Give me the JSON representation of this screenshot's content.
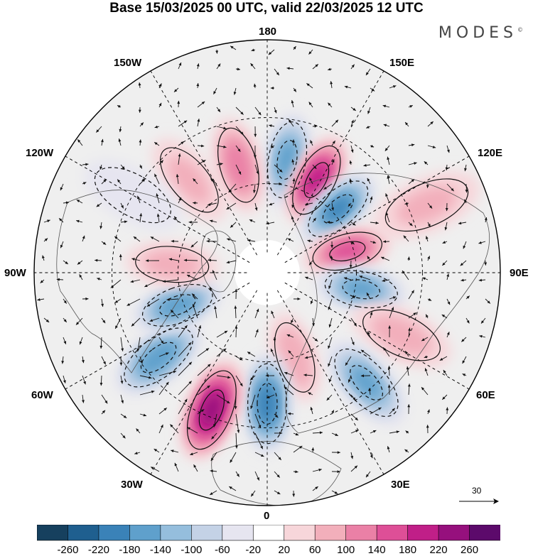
{
  "title": "Base 15/03/2025 00 UTC, valid 22/03/2025 12 UTC",
  "brand": "MODES",
  "brand_mark": "©",
  "longitude_labels": {
    "top": "180",
    "bottom": "0",
    "left": "90W",
    "right": "90E",
    "upper_left_1": "150W",
    "upper_left_2": "120W",
    "lower_left_1": "60W",
    "lower_left_2": "30W",
    "upper_right_1": "150E",
    "upper_right_2": "120E",
    "lower_right_1": "60E",
    "lower_right_2": "30E"
  },
  "reference_vector": {
    "label": "30"
  },
  "colorbar": {
    "ticks": [
      "-260",
      "-220",
      "-180",
      "-140",
      "-100",
      "-60",
      "-20",
      "20",
      "60",
      "100",
      "140",
      "180",
      "220",
      "260"
    ],
    "colors": [
      "#16405e",
      "#1f5f8f",
      "#3a82b8",
      "#5fa0cc",
      "#95bedd",
      "#c4d2e6",
      "#e6e5f0",
      "#ffffff",
      "#f7d6da",
      "#f2afbb",
      "#ea80a6",
      "#de4f97",
      "#c01f88",
      "#96107d",
      "#5c0a6b"
    ]
  },
  "colors": {
    "ocean_bg": "#efefef",
    "land_outline": "#555555",
    "grid": "#000000"
  },
  "anomaly_centers": [
    {
      "lon": 170,
      "lat": 52,
      "value": -150
    },
    {
      "lon": -165,
      "lat": 53,
      "value": 120
    },
    {
      "lon": -140,
      "lat": 50,
      "value": 60
    },
    {
      "lon": 152,
      "lat": 55,
      "value": 200
    },
    {
      "lon": 132,
      "lat": 58,
      "value": -180
    },
    {
      "lon": 105,
      "lat": 62,
      "value": 150
    },
    {
      "lon": 80,
      "lat": 58,
      "value": -150
    },
    {
      "lon": 65,
      "lat": 42,
      "value": 70
    },
    {
      "lon": 42,
      "lat": 42,
      "value": -140
    },
    {
      "lon": 18,
      "lat": 60,
      "value": 90
    },
    {
      "lon": 0,
      "lat": 47,
      "value": -200
    },
    {
      "lon": -22,
      "lat": 42,
      "value": 230
    },
    {
      "lon": -52,
      "lat": 45,
      "value": -170
    },
    {
      "lon": -70,
      "lat": 58,
      "value": -170
    },
    {
      "lon": -95,
      "lat": 58,
      "value": 70
    },
    {
      "lon": 113,
      "lat": 35,
      "value": 60
    },
    {
      "lon": -120,
      "lat": 40,
      "value": -20
    }
  ]
}
